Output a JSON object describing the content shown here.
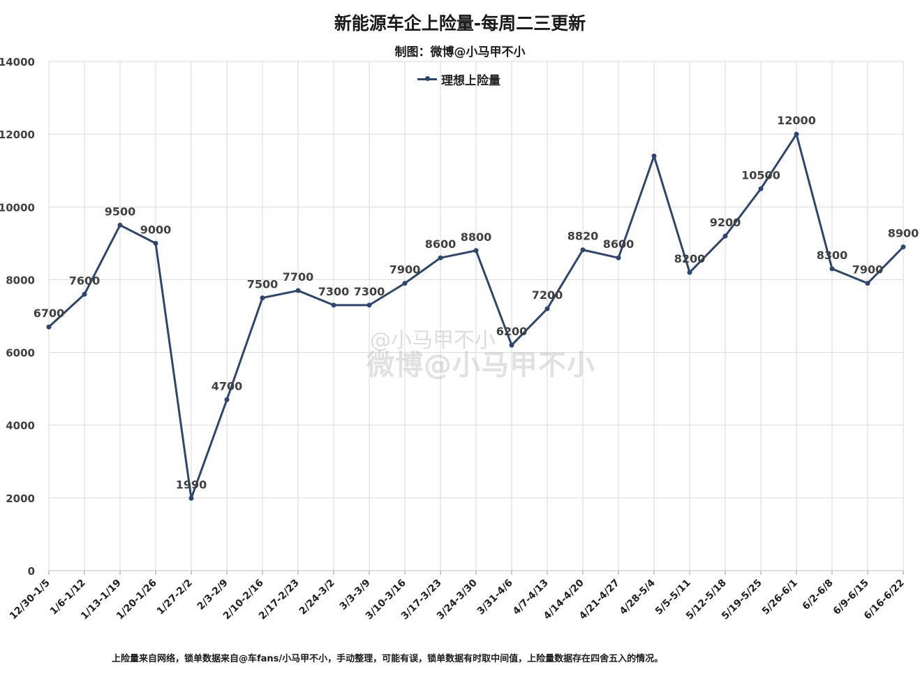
{
  "header": {
    "title": "新能源车企上险量-每周二三更新",
    "subtitle": "制图：微博@小马甲不小"
  },
  "legend": {
    "label": "理想上险量"
  },
  "footnote": "上险量来自网络，锁单数据来自@车fans/小马甲不小，手动整理，可能有误，锁单数据有时取中间值，上险量数据存在四舍五入的情况。",
  "watermark": {
    "line1": "@小马甲不小",
    "line2": "微博@小马甲不小"
  },
  "colors": {
    "series": "#2c4670",
    "grid": "#d9d9d9",
    "label": "#404040"
  },
  "chart_data": {
    "type": "line",
    "title": "新能源车企上险量-每周二三更新",
    "subtitle": "制图：微博@小马甲不小",
    "xlabel": "",
    "ylabel": "",
    "ylim": [
      0,
      14000
    ],
    "yticks": [
      0,
      2000,
      4000,
      6000,
      8000,
      10000,
      12000,
      14000
    ],
    "grid": true,
    "legend_position": "top-center",
    "categories": [
      "12/30-1/5",
      "1/6-1/12",
      "1/13-1/19",
      "1/20-1/26",
      "1/27-2/2",
      "2/3-2/9",
      "2/10-2/16",
      "2/17-2/23",
      "2/24-3/2",
      "3/3-3/9",
      "3/10-3/16",
      "3/17-3/23",
      "3/24-3/30",
      "3/31-4/6",
      "4/7-4/13",
      "4/14-4/20",
      "4/21-4/27",
      "4/28-5/4",
      "5/5-5/11",
      "5/12-5/18",
      "5/19-5/25",
      "5/26-6/1",
      "6/2-6/8",
      "6/9-6/15",
      "6/16-6/22"
    ],
    "series": [
      {
        "name": "理想上险量",
        "values": [
          6700,
          7600,
          9500,
          9000,
          1990,
          4700,
          7500,
          7700,
          7300,
          7300,
          7900,
          8600,
          8800,
          6200,
          7200,
          8820,
          8600,
          11400,
          8200,
          9200,
          10500,
          12000,
          8300,
          7900,
          8900
        ],
        "labels": [
          "6700",
          "7600",
          "9500",
          "9000",
          "1990",
          "4700",
          "7500",
          "7700",
          "7300",
          "7300",
          "7900",
          "8600",
          "8800",
          "6200",
          "7200",
          "8820",
          "8600",
          "",
          "8200",
          "9200",
          "10500",
          "12000",
          "8300",
          "7900",
          "8900"
        ]
      }
    ]
  }
}
